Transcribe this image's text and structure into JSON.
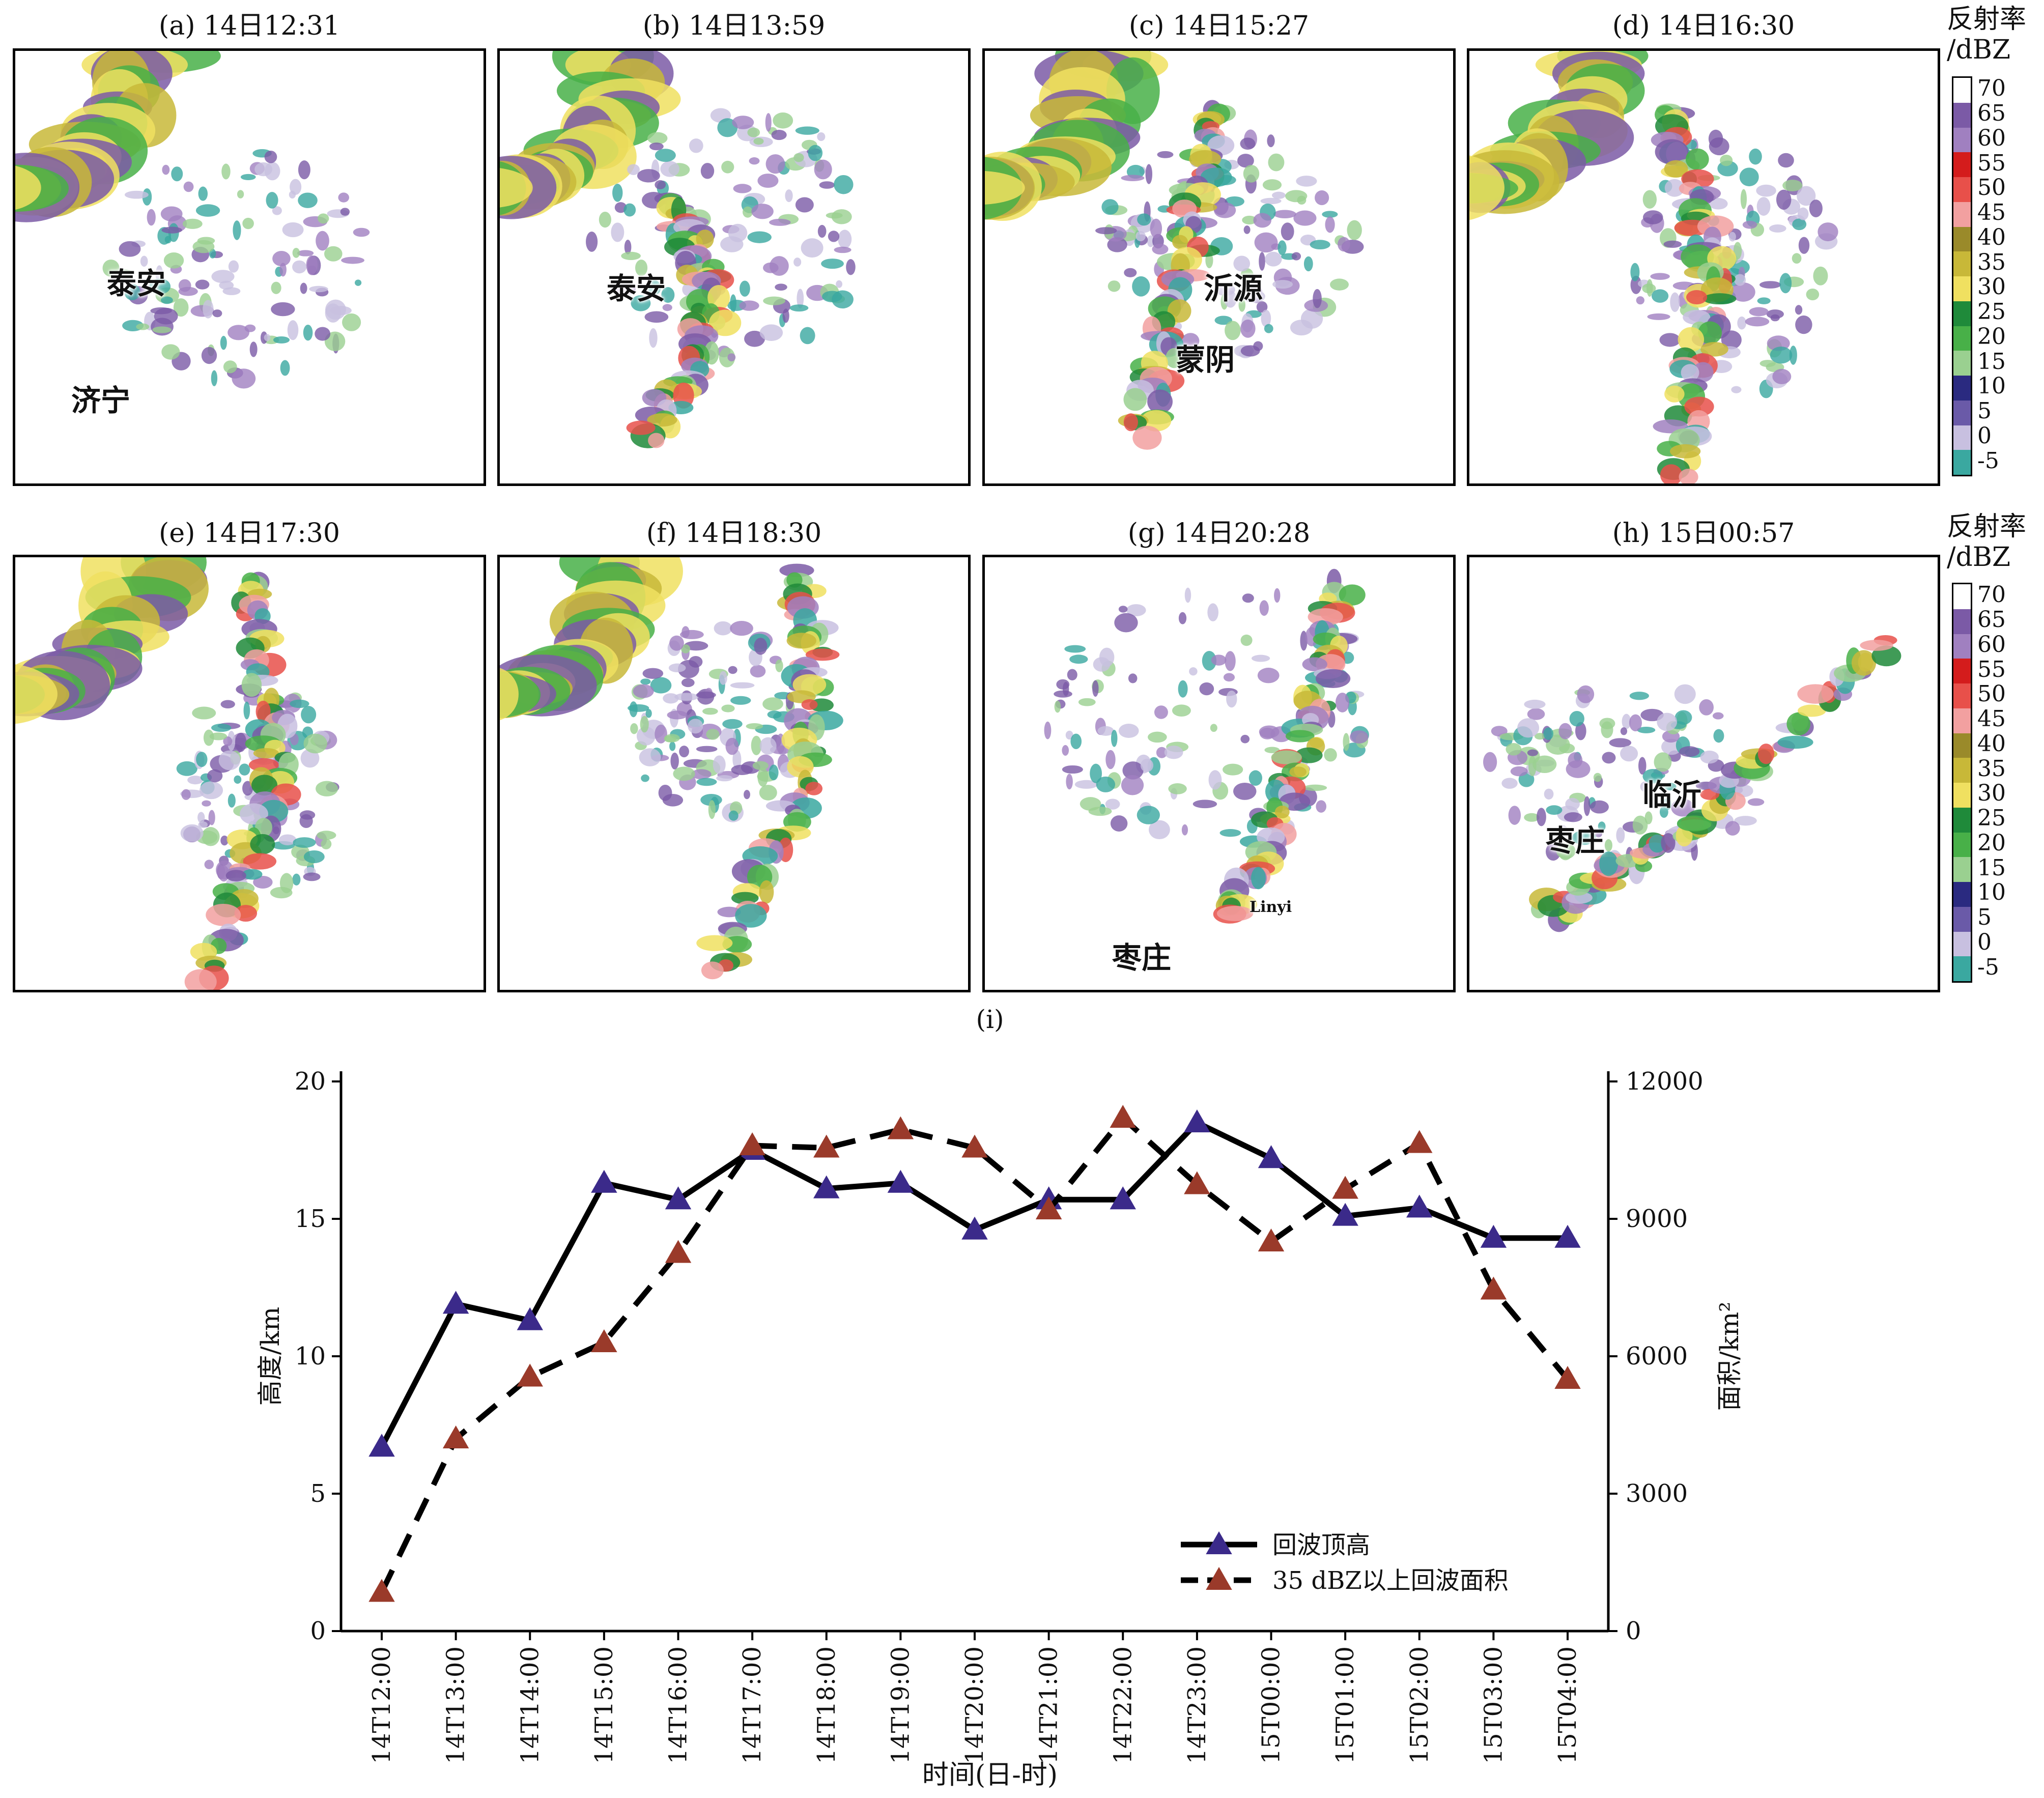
{
  "panels": [
    {
      "title": "(a) 14日12:31",
      "labels": [
        "泰安",
        "济宁"
      ]
    },
    {
      "title": "(b) 14日13:59",
      "labels": [
        "泰安"
      ]
    },
    {
      "title": "(c) 14日15:27",
      "labels": [
        "沂源",
        "蒙阴"
      ]
    },
    {
      "title": "(d) 14日16:30",
      "labels": []
    },
    {
      "title": "(e) 14日17:30",
      "labels": []
    },
    {
      "title": "(f) 14日18:30",
      "labels": []
    },
    {
      "title": "(g) 14日20:28",
      "labels": [
        "枣庄",
        "Linyi"
      ]
    },
    {
      "title": "(h) 15日00:57",
      "labels": [
        "临沂",
        "枣庄"
      ]
    }
  ],
  "colorbar": {
    "title_line1": "反射率",
    "title_line2": "/dBZ",
    "ticks": [
      "70",
      "65",
      "60",
      "55",
      "50",
      "45",
      "40",
      "35",
      "30",
      "25",
      "20",
      "15",
      "10",
      "5",
      "0",
      "-5"
    ],
    "colors": [
      "#ffffff",
      "#7b5aa6",
      "#a080c0",
      "#d41c1c",
      "#e8504a",
      "#f2a0a0",
      "#9a8a2a",
      "#c8b838",
      "#f0e060",
      "#1f8a3a",
      "#48b048",
      "#9ad090",
      "#2a2a80",
      "#6a5aa8",
      "#c8c0e0",
      "#3aa8a0"
    ]
  },
  "chart_data": {
    "type": "line",
    "title": "(i)",
    "xlabel": "时间(日-时)",
    "ylabel_left": "高度/km",
    "ylabel_right": "面积/km²",
    "x": [
      "14T12:00",
      "14T13:00",
      "14T14:00",
      "14T15:00",
      "14T16:00",
      "14T17:00",
      "14T18:00",
      "14T19:00",
      "14T20:00",
      "14T21:00",
      "14T22:00",
      "14T23:00",
      "15T00:00",
      "15T01:00",
      "15T02:00",
      "15T03:00",
      "15T04:00"
    ],
    "ylim_left": [
      0,
      20
    ],
    "yticks_left": [
      "0",
      "5",
      "10",
      "15",
      "20"
    ],
    "ylim_right": [
      0,
      12000
    ],
    "yticks_right": [
      "0",
      "3000",
      "6000",
      "9000",
      "12000"
    ],
    "series": [
      {
        "name": "回波顶高",
        "axis": "left",
        "style": "solid",
        "color": "#000000",
        "marker_color": "#3b2a8a",
        "values": [
          6.7,
          11.9,
          11.3,
          16.3,
          15.7,
          17.5,
          16.1,
          16.3,
          14.6,
          15.7,
          15.7,
          18.5,
          17.2,
          15.1,
          15.4,
          14.3,
          14.3
        ]
      },
      {
        "name": "35 dBZ以上回波面积",
        "axis": "right",
        "style": "dashed",
        "color": "#000000",
        "marker_color": "#9a3a2a",
        "values": [
          850,
          4200,
          5550,
          6300,
          8250,
          10600,
          10550,
          10950,
          10550,
          9200,
          11200,
          9750,
          8500,
          9650,
          10650,
          7450,
          5500
        ]
      }
    ],
    "legend_position": "lower-right",
    "grid": false
  }
}
